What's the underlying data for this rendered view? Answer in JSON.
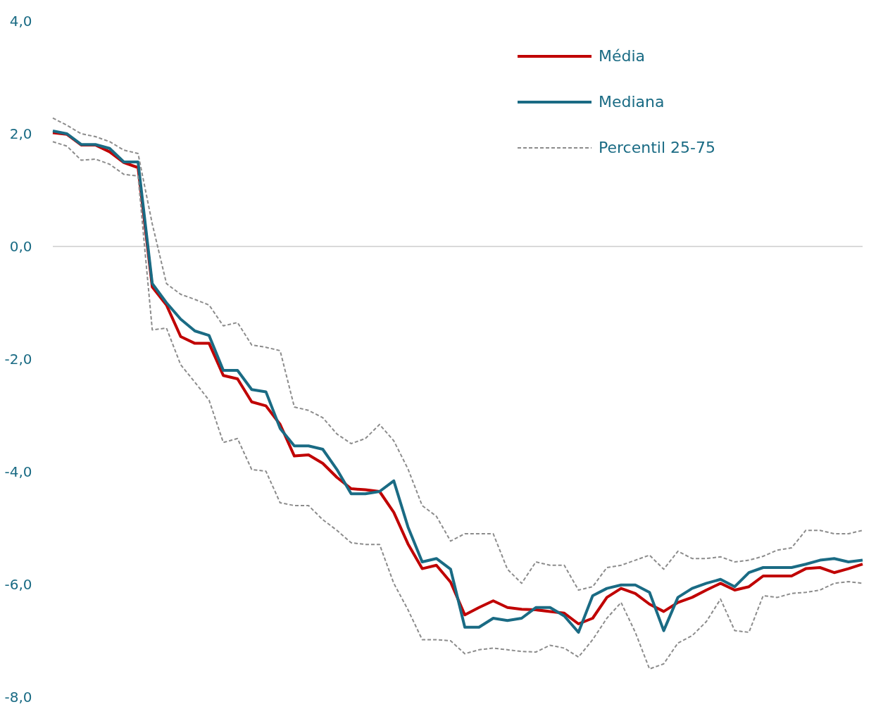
{
  "chart_data": {
    "type": "line",
    "categories": [
      null,
      null,
      null,
      null,
      null,
      null,
      null,
      null,
      null,
      null,
      null,
      null,
      null,
      null,
      null,
      null,
      null,
      null,
      null,
      null,
      null,
      null,
      null,
      null,
      null,
      null,
      null,
      null,
      null,
      null,
      null,
      null,
      null,
      null,
      null,
      null,
      null,
      null,
      null,
      null,
      null,
      null,
      null,
      null,
      null,
      null,
      null,
      null,
      null,
      null,
      null,
      null,
      null,
      null,
      null,
      null,
      null,
      null
    ],
    "series": [
      {
        "name": "Média",
        "color": "#c00000",
        "line_style": "solid",
        "values": [
          2.02,
          1.99,
          1.8,
          1.8,
          1.68,
          1.49,
          1.4,
          -0.72,
          -1.04,
          -1.6,
          -1.72,
          -1.72,
          -2.29,
          -2.35,
          -2.76,
          -2.83,
          -3.16,
          -3.72,
          -3.7,
          -3.85,
          -4.1,
          -4.3,
          -4.32,
          -4.35,
          -4.72,
          -5.28,
          -5.72,
          -5.66,
          -5.96,
          -6.54,
          -6.41,
          -6.29,
          -6.41,
          -6.44,
          -6.45,
          -6.48,
          -6.51,
          -6.7,
          -6.6,
          -6.23,
          -6.07,
          -6.16,
          -6.35,
          -6.48,
          -6.32,
          -6.23,
          -6.1,
          -5.98,
          -6.1,
          -6.04,
          -5.85,
          -5.85,
          -5.85,
          -5.72,
          -5.7,
          -5.79,
          -5.72,
          -5.64
        ]
      },
      {
        "name": "Mediana",
        "color": "#1a6b84",
        "line_style": "solid",
        "values": [
          2.05,
          2.0,
          1.81,
          1.81,
          1.74,
          1.5,
          1.5,
          -0.66,
          -1.0,
          -1.29,
          -1.5,
          -1.58,
          -2.2,
          -2.2,
          -2.54,
          -2.58,
          -3.23,
          -3.54,
          -3.54,
          -3.6,
          -3.96,
          -4.39,
          -4.39,
          -4.35,
          -4.16,
          -4.98,
          -5.6,
          -5.54,
          -5.73,
          -6.76,
          -6.76,
          -6.6,
          -6.64,
          -6.6,
          -6.41,
          -6.41,
          -6.56,
          -6.85,
          -6.2,
          -6.07,
          -6.01,
          -6.01,
          -6.14,
          -6.82,
          -6.23,
          -6.07,
          -5.98,
          -5.91,
          -6.04,
          -5.79,
          -5.7,
          -5.7,
          -5.7,
          -5.64,
          -5.57,
          -5.54,
          -5.6,
          -5.57
        ]
      },
      {
        "name": "Percentil 25-75",
        "color": "#8c8c8c",
        "line_style": "dashed",
        "values": [
          2.28,
          2.15,
          2.0,
          1.95,
          1.86,
          1.71,
          1.65,
          0.4,
          -0.66,
          -0.85,
          -0.94,
          -1.04,
          -1.41,
          -1.35,
          -1.75,
          -1.79,
          -1.85,
          -2.85,
          -2.91,
          -3.04,
          -3.33,
          -3.5,
          -3.41,
          -3.16,
          -3.45,
          -3.95,
          -4.6,
          -4.79,
          -5.23,
          -5.1,
          -5.1,
          -5.1,
          -5.73,
          -5.98,
          -5.6,
          -5.66,
          -5.66,
          -6.1,
          -6.04,
          -5.7,
          -5.66,
          -5.57,
          -5.48,
          -5.73,
          -5.41,
          -5.54,
          -5.54,
          -5.51,
          -5.6,
          -5.57,
          -5.5,
          -5.39,
          -5.35,
          -5.04,
          -5.04,
          -5.1,
          -5.1,
          -5.04
        ]
      },
      {
        "color": "#8c8c8c",
        "line_style": "dashed",
        "values": [
          1.86,
          1.78,
          1.53,
          1.55,
          1.46,
          1.28,
          1.25,
          -1.48,
          -1.45,
          -2.1,
          -2.41,
          -2.73,
          -3.48,
          -3.41,
          -3.96,
          -3.99,
          -4.55,
          -4.6,
          -4.6,
          -4.85,
          -5.04,
          -5.26,
          -5.29,
          -5.29,
          -5.98,
          -6.45,
          -6.98,
          -6.98,
          -7.0,
          -7.23,
          -7.16,
          -7.13,
          -7.16,
          -7.19,
          -7.2,
          -7.08,
          -7.13,
          -7.29,
          -6.98,
          -6.6,
          -6.32,
          -6.85,
          -7.5,
          -7.41,
          -7.04,
          -6.91,
          -6.66,
          -6.26,
          -6.82,
          -6.85,
          -6.2,
          -6.23,
          -6.16,
          -6.14,
          -6.1,
          -5.98,
          -5.95,
          -5.98
        ]
      }
    ],
    "ylim": [
      -8,
      4
    ],
    "yticks": [
      {
        "value": -8,
        "label": "-8,0"
      },
      {
        "value": -6,
        "label": "-6,0"
      },
      {
        "value": -4,
        "label": "-4,0"
      },
      {
        "value": -2,
        "label": "-2,0"
      },
      {
        "value": 0,
        "label": "0,0"
      },
      {
        "value": 2,
        "label": "2,0"
      },
      {
        "value": 4,
        "label": "4,0"
      }
    ],
    "ref_lines": [
      {
        "axis": "y",
        "value": 0,
        "color": "#d9d9d9"
      }
    ],
    "grid": false,
    "legend": "top right",
    "tick_labels": "y"
  }
}
